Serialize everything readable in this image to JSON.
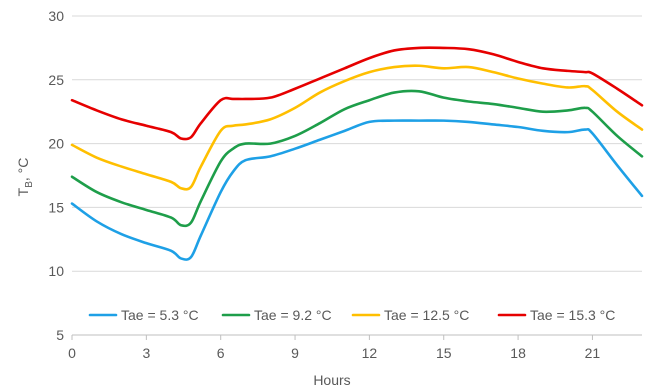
{
  "chart_data": {
    "type": "line",
    "xlabel": "Hours",
    "ylabel_main": "T",
    "ylabel_sub": "B",
    "ylabel_unit": ", °C",
    "xlim": [
      0,
      23
    ],
    "ylim": [
      5,
      30
    ],
    "x_ticks": [
      0,
      3,
      6,
      9,
      12,
      15,
      18,
      21
    ],
    "y_ticks": [
      5,
      10,
      15,
      20,
      25,
      30
    ],
    "grid": "horizontal",
    "legend_position": "bottom-inside",
    "x": [
      0,
      1,
      2,
      3,
      4,
      4.4,
      4.8,
      5.2,
      6,
      6.5,
      7,
      8,
      9,
      10,
      11,
      12,
      13,
      14,
      15,
      16,
      17,
      18,
      19,
      20,
      20.7,
      21,
      22,
      23
    ],
    "series": [
      {
        "name": "Tae = 5.3 °C",
        "color": "#1ea0e6",
        "values": [
          15.3,
          13.9,
          12.9,
          12.2,
          11.6,
          11.0,
          11.1,
          12.8,
          16.2,
          17.8,
          18.7,
          19.0,
          19.6,
          20.3,
          21.0,
          21.7,
          21.8,
          21.8,
          21.8,
          21.7,
          21.5,
          21.3,
          21.0,
          20.9,
          21.1,
          20.8,
          18.3,
          15.9
        ]
      },
      {
        "name": "Tae = 9.2 °C",
        "color": "#1e9e4a",
        "values": [
          17.4,
          16.2,
          15.4,
          14.8,
          14.2,
          13.6,
          13.8,
          15.5,
          18.6,
          19.6,
          20.0,
          20.0,
          20.6,
          21.6,
          22.7,
          23.4,
          24.0,
          24.1,
          23.6,
          23.3,
          23.1,
          22.8,
          22.5,
          22.6,
          22.8,
          22.5,
          20.6,
          19.0
        ]
      },
      {
        "name": "Tae = 12.5 °C",
        "color": "#ffbf00",
        "values": [
          19.9,
          18.9,
          18.2,
          17.6,
          17.0,
          16.5,
          16.6,
          18.2,
          21.0,
          21.4,
          21.5,
          21.9,
          22.8,
          24.0,
          24.9,
          25.6,
          26.0,
          26.1,
          25.9,
          26.0,
          25.6,
          25.1,
          24.7,
          24.4,
          24.5,
          24.2,
          22.5,
          21.1
        ]
      },
      {
        "name": "Tae = 15.3 °C",
        "color": "#e60000",
        "values": [
          23.4,
          22.6,
          21.9,
          21.4,
          20.9,
          20.4,
          20.5,
          21.6,
          23.4,
          23.5,
          23.5,
          23.6,
          24.3,
          25.1,
          25.9,
          26.7,
          27.3,
          27.5,
          27.5,
          27.4,
          27.0,
          26.4,
          25.9,
          25.7,
          25.6,
          25.5,
          24.3,
          23.0
        ]
      }
    ]
  }
}
